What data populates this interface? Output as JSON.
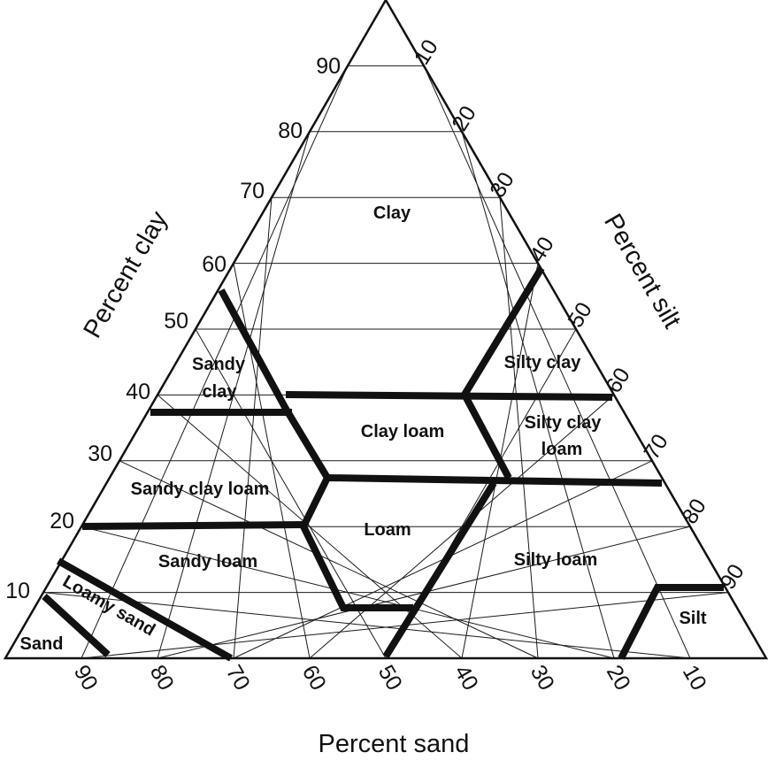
{
  "axes": {
    "clay": {
      "title": "Percent clay",
      "ticks": [
        "10",
        "20",
        "30",
        "40",
        "50",
        "60",
        "70",
        "80",
        "90"
      ]
    },
    "silt": {
      "title": "Percent silt",
      "ticks": [
        "10",
        "20",
        "30",
        "40",
        "50",
        "60",
        "70",
        "80",
        "90"
      ]
    },
    "sand": {
      "title": "Percent sand",
      "ticks": [
        "90",
        "80",
        "70",
        "60",
        "50",
        "40",
        "30",
        "20",
        "10"
      ]
    }
  },
  "regions": {
    "clay": "Clay",
    "sandy_clay_1": "Sandy",
    "sandy_clay_2": "clay",
    "silty_clay": "Silty clay",
    "clay_loam": "Clay loam",
    "silty_clay_loam_1": "Silty clay",
    "silty_clay_loam_2": "loam",
    "sandy_clay_loam": "Sandy clay loam",
    "loam": "Loam",
    "sandy_loam": "Sandy loam",
    "silty_loam": "Silty loam",
    "loamy_sand": "Loamy sand",
    "sand": "Sand",
    "silt": "Silt"
  },
  "colors": {
    "ink": "#111111",
    "grid": "#1a1a1a",
    "background": "#ffffff"
  }
}
